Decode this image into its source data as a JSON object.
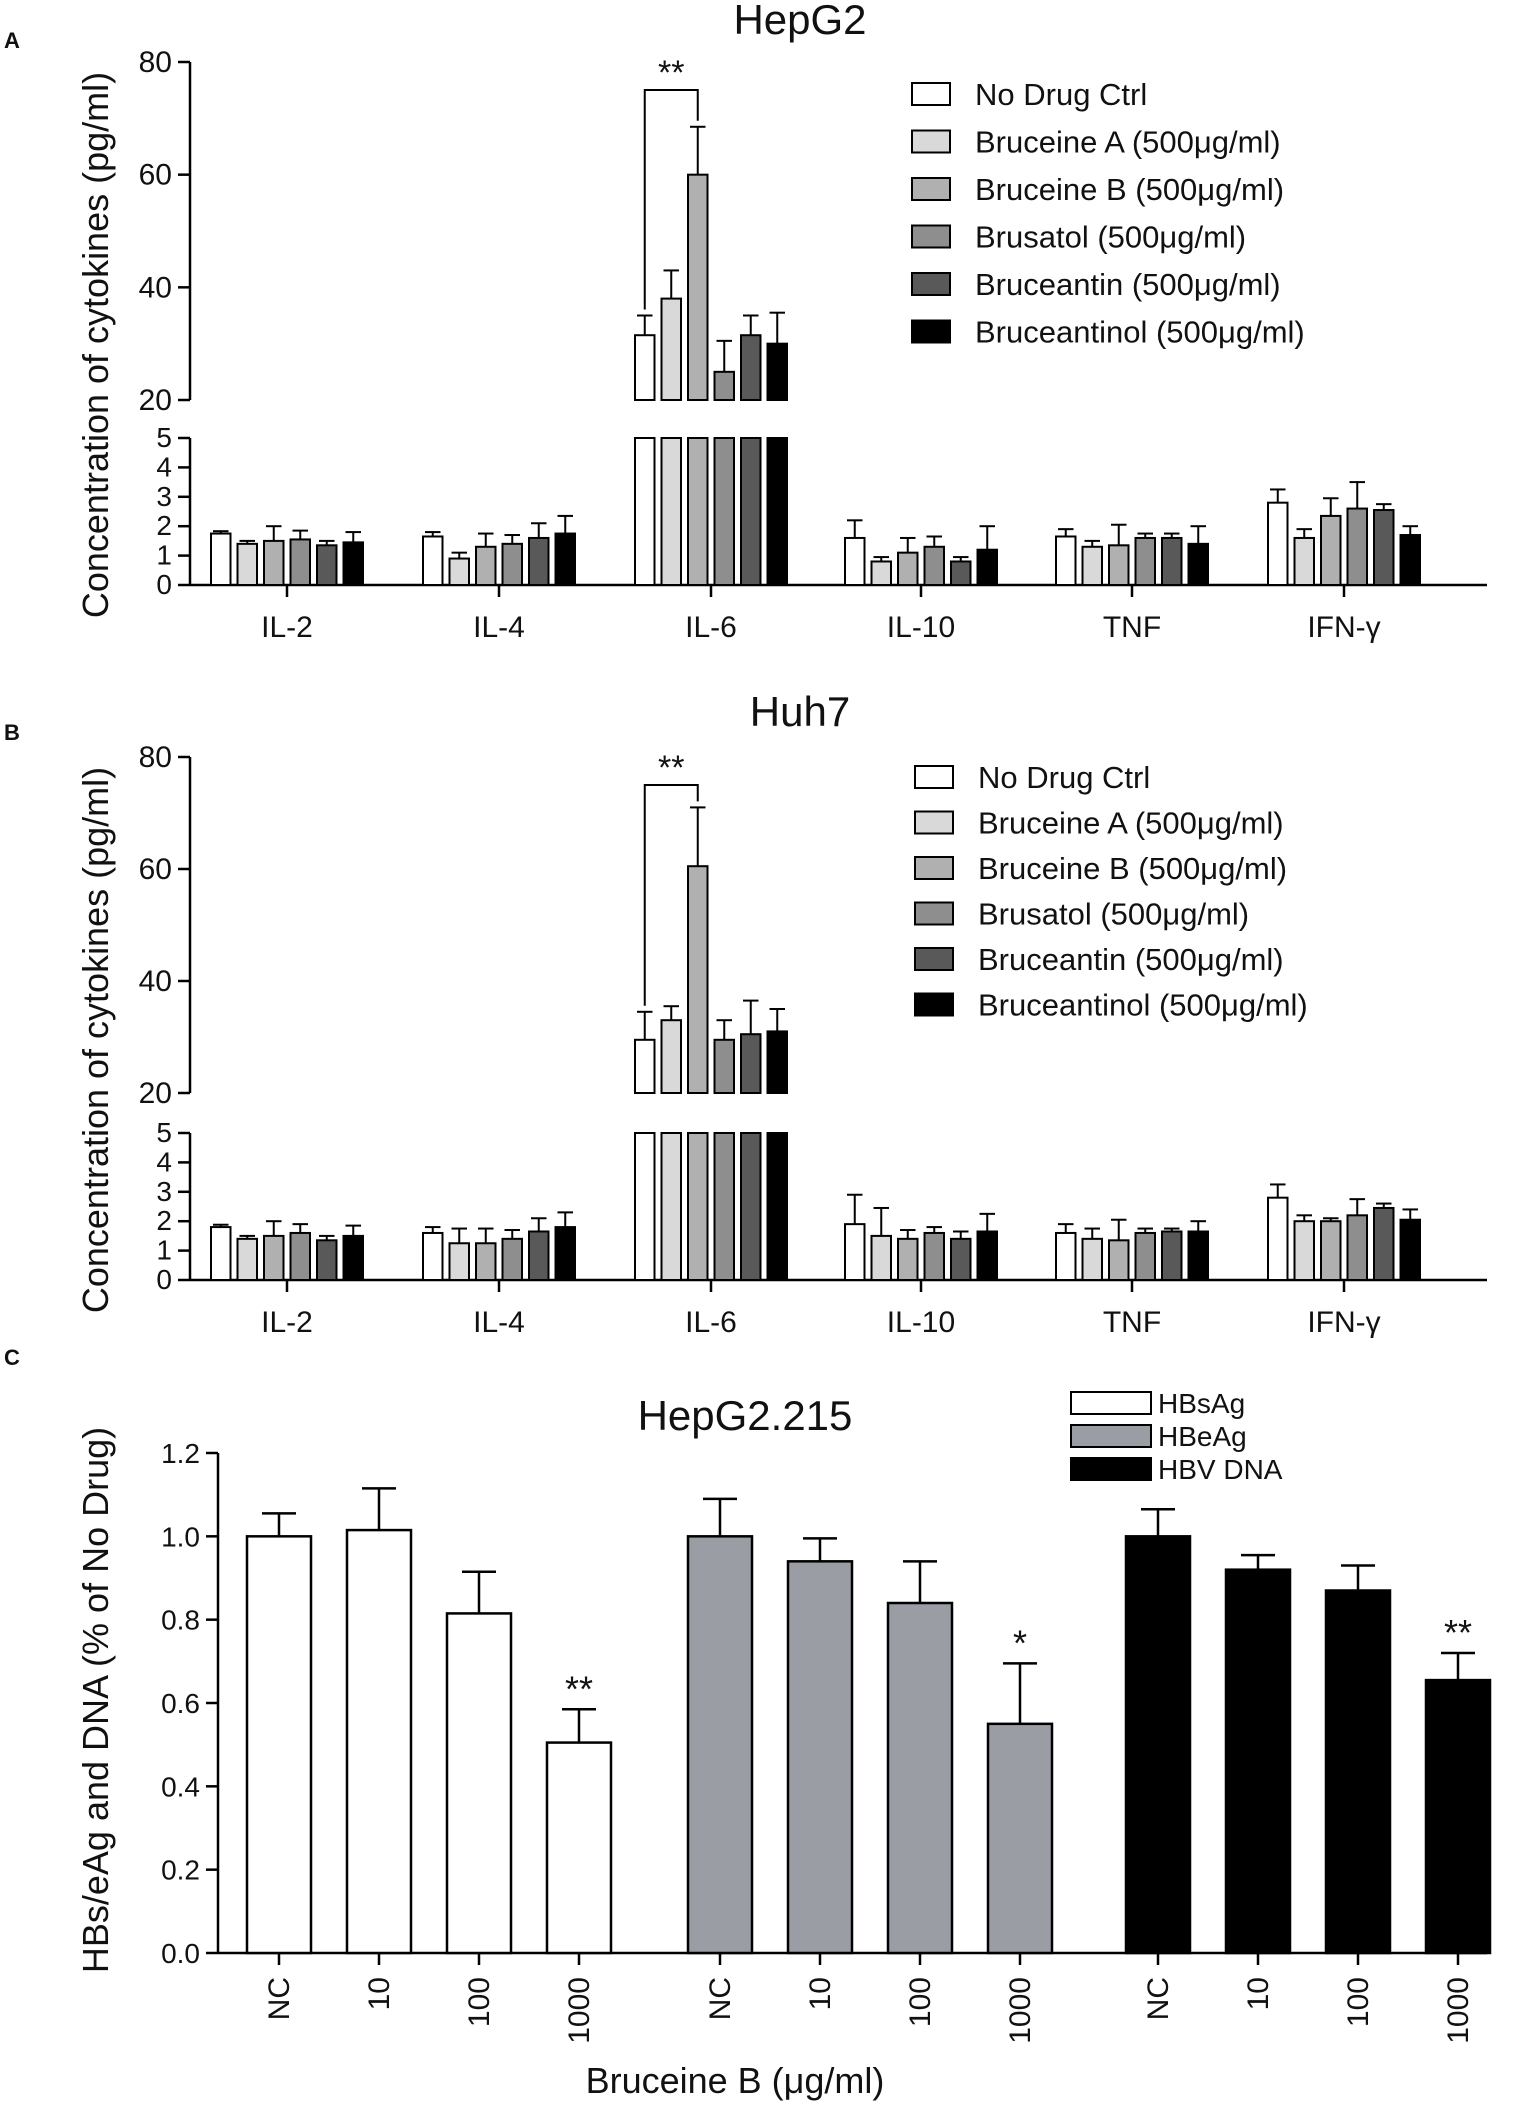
{
  "chart_data": [
    {
      "panel": "A",
      "type": "bar",
      "title": "HepG2",
      "ylabel": "Concentration of cytokines (pg/ml)",
      "xlabel": "",
      "categories": [
        "IL-2",
        "IL-4",
        "IL-6",
        "IL-10",
        "TNF",
        "IFN-γ"
      ],
      "y_upper_ticks": [
        "20",
        "40",
        "60",
        "80"
      ],
      "y_lower_ticks": [
        "0",
        "1",
        "2",
        "3",
        "4",
        "5"
      ],
      "ylim_lower": [
        0,
        5
      ],
      "ylim_upper": [
        20,
        80
      ],
      "series": [
        {
          "name": "No Drug Ctrl",
          "color": "#ffffff",
          "values": [
            1.75,
            1.65,
            31.5,
            1.6,
            1.65,
            2.8
          ],
          "errors": [
            0.08,
            0.15,
            3.5,
            0.6,
            0.25,
            0.45
          ]
        },
        {
          "name": "Bruceine A (500μg/ml)",
          "color": "#d9d9d9",
          "values": [
            1.4,
            0.9,
            38,
            0.8,
            1.3,
            1.6
          ],
          "errors": [
            0.1,
            0.2,
            5,
            0.15,
            0.2,
            0.3
          ]
        },
        {
          "name": "Bruceine B (500μg/ml)",
          "color": "#b0b0b0",
          "values": [
            1.5,
            1.3,
            60,
            1.1,
            1.35,
            2.35
          ],
          "errors": [
            0.5,
            0.45,
            8.5,
            0.5,
            0.7,
            0.6
          ]
        },
        {
          "name": "Brusatol  (500μg/ml)",
          "color": "#8e8e8e",
          "values": [
            1.55,
            1.4,
            25,
            1.3,
            1.6,
            2.6
          ],
          "errors": [
            0.3,
            0.3,
            5.5,
            0.35,
            0.15,
            0.9
          ]
        },
        {
          "name": "Bruceantin  (500μg/ml)",
          "color": "#595959",
          "values": [
            1.35,
            1.6,
            31.5,
            0.8,
            1.6,
            2.55
          ],
          "errors": [
            0.15,
            0.5,
            3.5,
            0.15,
            0.15,
            0.2
          ]
        },
        {
          "name": "Bruceantinol  (500μg/ml)",
          "color": "#000000",
          "values": [
            1.45,
            1.75,
            30,
            1.2,
            1.4,
            1.7
          ],
          "errors": [
            0.35,
            0.6,
            5.5,
            0.8,
            0.6,
            0.3
          ]
        }
      ],
      "annotation": "**"
    },
    {
      "panel": "B",
      "type": "bar",
      "title": "Huh7",
      "ylabel": "Concentration of cytokines (pg/ml)",
      "xlabel": "",
      "categories": [
        "IL-2",
        "IL-4",
        "IL-6",
        "IL-10",
        "TNF",
        "IFN-γ"
      ],
      "y_upper_ticks": [
        "20",
        "40",
        "60",
        "80"
      ],
      "y_lower_ticks": [
        "0",
        "1",
        "2",
        "3",
        "4",
        "5"
      ],
      "ylim_lower": [
        0,
        5
      ],
      "ylim_upper": [
        20,
        80
      ],
      "series": [
        {
          "name": "No Drug Ctrl",
          "color": "#ffffff",
          "values": [
            1.8,
            1.6,
            29.5,
            1.9,
            1.6,
            2.8
          ],
          "errors": [
            0.08,
            0.2,
            5,
            1.0,
            0.3,
            0.45
          ]
        },
        {
          "name": "Bruceine A  (500μg/ml)",
          "color": "#d9d9d9",
          "values": [
            1.4,
            1.25,
            33,
            1.5,
            1.4,
            2.0
          ],
          "errors": [
            0.1,
            0.5,
            2.5,
            0.95,
            0.35,
            0.2
          ]
        },
        {
          "name": "Bruceine B (500μg/ml)",
          "color": "#b0b0b0",
          "values": [
            1.5,
            1.25,
            60.5,
            1.4,
            1.35,
            2.0
          ],
          "errors": [
            0.5,
            0.5,
            10.5,
            0.3,
            0.7,
            0.1
          ]
        },
        {
          "name": "Brusatol  (500μg/ml)",
          "color": "#8e8e8e",
          "values": [
            1.6,
            1.4,
            29.5,
            1.6,
            1.6,
            2.2
          ],
          "errors": [
            0.3,
            0.3,
            3.5,
            0.2,
            0.15,
            0.55
          ]
        },
        {
          "name": "Bruceantin  (500μg/ml)",
          "color": "#595959",
          "values": [
            1.35,
            1.65,
            30.5,
            1.4,
            1.65,
            2.45
          ],
          "errors": [
            0.15,
            0.45,
            6,
            0.25,
            0.1,
            0.15
          ]
        },
        {
          "name": "Bruceantinol  (500μg/ml)",
          "color": "#000000",
          "values": [
            1.5,
            1.8,
            31,
            1.65,
            1.65,
            2.05
          ],
          "errors": [
            0.35,
            0.5,
            4,
            0.6,
            0.35,
            0.35
          ]
        }
      ],
      "annotation": "**"
    },
    {
      "panel": "C",
      "type": "bar",
      "title": "HepG2.215",
      "ylabel": "HBs/eAg and DNA (% of No Drug)",
      "xlabel": "Bruceine B (μg/ml)",
      "ylim": [
        0,
        1.2
      ],
      "y_ticks": [
        "0.0",
        "0.2",
        "0.4",
        "0.6",
        "0.8",
        "1.0",
        "1.2"
      ],
      "categories": [
        "NC",
        "10",
        "100",
        "1000"
      ],
      "series": [
        {
          "name": "HBsAg",
          "color": "#ffffff",
          "values": [
            1.0,
            1.015,
            0.815,
            0.505
          ],
          "errors": [
            0.055,
            0.1,
            0.1,
            0.08
          ],
          "annotations": [
            "",
            "",
            "",
            "**"
          ]
        },
        {
          "name": "HBeAg",
          "color": "#9a9ea4",
          "values": [
            1.0,
            0.94,
            0.84,
            0.55
          ],
          "errors": [
            0.09,
            0.055,
            0.1,
            0.145
          ],
          "annotations": [
            "",
            "",
            "",
            "*"
          ]
        },
        {
          "name": "HBV DNA",
          "color": "#000000",
          "values": [
            1.0,
            0.92,
            0.87,
            0.655
          ],
          "errors": [
            0.065,
            0.035,
            0.06,
            0.065
          ],
          "annotations": [
            "",
            "",
            "",
            "**"
          ]
        }
      ]
    }
  ],
  "panel_labels": [
    "A",
    "B",
    "C"
  ]
}
